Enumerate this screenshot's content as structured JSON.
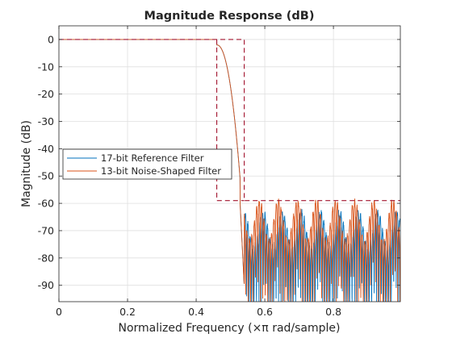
{
  "chart_data": {
    "type": "line",
    "title": "Magnitude Response (dB)",
    "xlabel": "Normalized Frequency (×π rad/sample)",
    "ylabel": "Magnitude (dB)",
    "xlim": [
      0,
      0.995
    ],
    "ylim": [
      -96,
      5
    ],
    "x_ticks": [
      0,
      0.2,
      0.4,
      0.6,
      0.8
    ],
    "x_tick_labels": [
      "0",
      "0.2",
      "0.4",
      "0.6",
      "0.8"
    ],
    "y_ticks": [
      0,
      -10,
      -20,
      -30,
      -40,
      -50,
      -60,
      -70,
      -80,
      -90
    ],
    "y_tick_labels": [
      "0",
      "-10",
      "-20",
      "-30",
      "-40",
      "-50",
      "-60",
      "-70",
      "-80",
      "-90"
    ],
    "grid": true,
    "legend_position": "middle-left",
    "series": [
      {
        "name": "17-bit Reference Filter",
        "color": "#0072bd",
        "passband_edge": 0.46,
        "stopband_edge": 0.54,
        "passband_level": 0,
        "stopband_peak_range": [
          -77,
          -63
        ]
      },
      {
        "name": "13-bit Noise-Shaped Filter",
        "color": "#d95319",
        "passband_edge": 0.46,
        "stopband_edge": 0.54,
        "passband_level": 0,
        "stopband_peak_range": [
          -75,
          -59
        ]
      }
    ],
    "mask": {
      "color": "#a2142f",
      "style": "dashed",
      "points": [
        [
          0,
          0
        ],
        [
          0.54,
          0
        ],
        [
          0.54,
          -59
        ],
        [
          0.995,
          -59
        ]
      ],
      "left_bound": [
        [
          0.46,
          0
        ],
        [
          0.46,
          -59
        ],
        [
          0.54,
          -59
        ]
      ]
    }
  }
}
